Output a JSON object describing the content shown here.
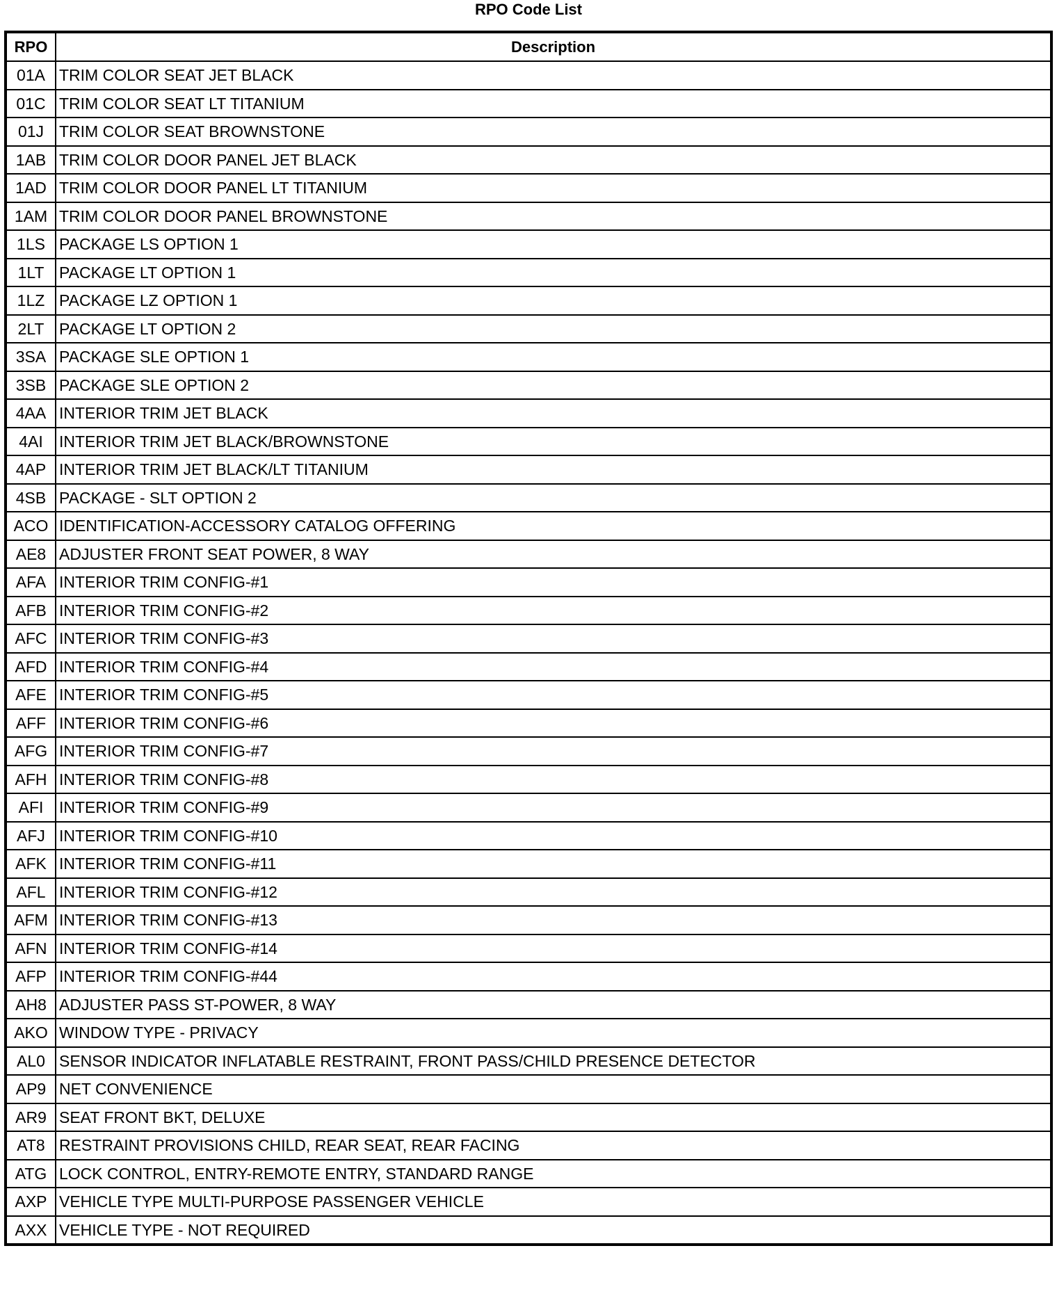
{
  "title": "RPO Code List",
  "table": {
    "headers": [
      "RPO",
      "Description"
    ],
    "rows": [
      {
        "code": "01A",
        "desc": "TRIM COLOR SEAT JET BLACK"
      },
      {
        "code": "01C",
        "desc": "TRIM COLOR SEAT LT TITANIUM"
      },
      {
        "code": "01J",
        "desc": "TRIM COLOR SEAT BROWNSTONE"
      },
      {
        "code": "1AB",
        "desc": "TRIM COLOR DOOR PANEL JET BLACK"
      },
      {
        "code": "1AD",
        "desc": "TRIM COLOR DOOR PANEL LT TITANIUM"
      },
      {
        "code": "1AM",
        "desc": "TRIM COLOR DOOR PANEL BROWNSTONE"
      },
      {
        "code": "1LS",
        "desc": "PACKAGE LS OPTION 1"
      },
      {
        "code": "1LT",
        "desc": "PACKAGE LT OPTION 1"
      },
      {
        "code": "1LZ",
        "desc": "PACKAGE LZ OPTION 1"
      },
      {
        "code": "2LT",
        "desc": "PACKAGE LT OPTION 2"
      },
      {
        "code": "3SA",
        "desc": "PACKAGE SLE OPTION 1"
      },
      {
        "code": "3SB",
        "desc": "PACKAGE SLE OPTION 2"
      },
      {
        "code": "4AA",
        "desc": "INTERIOR TRIM JET BLACK"
      },
      {
        "code": "4AI",
        "desc": "INTERIOR TRIM JET BLACK/BROWNSTONE"
      },
      {
        "code": "4AP",
        "desc": "INTERIOR TRIM JET BLACK/LT TITANIUM"
      },
      {
        "code": "4SB",
        "desc": "PACKAGE - SLT OPTION 2"
      },
      {
        "code": "ACO",
        "desc": "IDENTIFICATION-ACCESSORY CATALOG OFFERING"
      },
      {
        "code": "AE8",
        "desc": "ADJUSTER FRONT SEAT POWER, 8 WAY"
      },
      {
        "code": "AFA",
        "desc": "INTERIOR TRIM CONFIG-#1"
      },
      {
        "code": "AFB",
        "desc": "INTERIOR TRIM CONFIG-#2"
      },
      {
        "code": "AFC",
        "desc": "INTERIOR TRIM CONFIG-#3"
      },
      {
        "code": "AFD",
        "desc": "INTERIOR TRIM CONFIG-#4"
      },
      {
        "code": "AFE",
        "desc": "INTERIOR TRIM CONFIG-#5"
      },
      {
        "code": "AFF",
        "desc": "INTERIOR TRIM CONFIG-#6"
      },
      {
        "code": "AFG",
        "desc": "INTERIOR TRIM CONFIG-#7"
      },
      {
        "code": "AFH",
        "desc": "INTERIOR TRIM CONFIG-#8"
      },
      {
        "code": "AFI",
        "desc": "INTERIOR TRIM CONFIG-#9"
      },
      {
        "code": "AFJ",
        "desc": "INTERIOR TRIM CONFIG-#10"
      },
      {
        "code": "AFK",
        "desc": "INTERIOR TRIM CONFIG-#11"
      },
      {
        "code": "AFL",
        "desc": "INTERIOR TRIM CONFIG-#12"
      },
      {
        "code": "AFM",
        "desc": "INTERIOR TRIM CONFIG-#13"
      },
      {
        "code": "AFN",
        "desc": "INTERIOR TRIM CONFIG-#14"
      },
      {
        "code": "AFP",
        "desc": "INTERIOR TRIM CONFIG-#44"
      },
      {
        "code": "AH8",
        "desc": "ADJUSTER PASS ST-POWER, 8 WAY"
      },
      {
        "code": "AKO",
        "desc": "WINDOW TYPE - PRIVACY"
      },
      {
        "code": "AL0",
        "desc": "SENSOR INDICATOR INFLATABLE RESTRAINT, FRONT PASS/CHILD PRESENCE DETECTOR"
      },
      {
        "code": "AP9",
        "desc": "NET CONVENIENCE"
      },
      {
        "code": "AR9",
        "desc": "SEAT FRONT BKT, DELUXE"
      },
      {
        "code": "AT8",
        "desc": "RESTRAINT PROVISIONS CHILD, REAR SEAT, REAR FACING"
      },
      {
        "code": "ATG",
        "desc": "LOCK CONTROL, ENTRY-REMOTE ENTRY, STANDARD RANGE"
      },
      {
        "code": "AXP",
        "desc": "VEHICLE TYPE MULTI-PURPOSE PASSENGER VEHICLE"
      },
      {
        "code": "AXX",
        "desc": "VEHICLE TYPE - NOT REQUIRED"
      }
    ]
  }
}
